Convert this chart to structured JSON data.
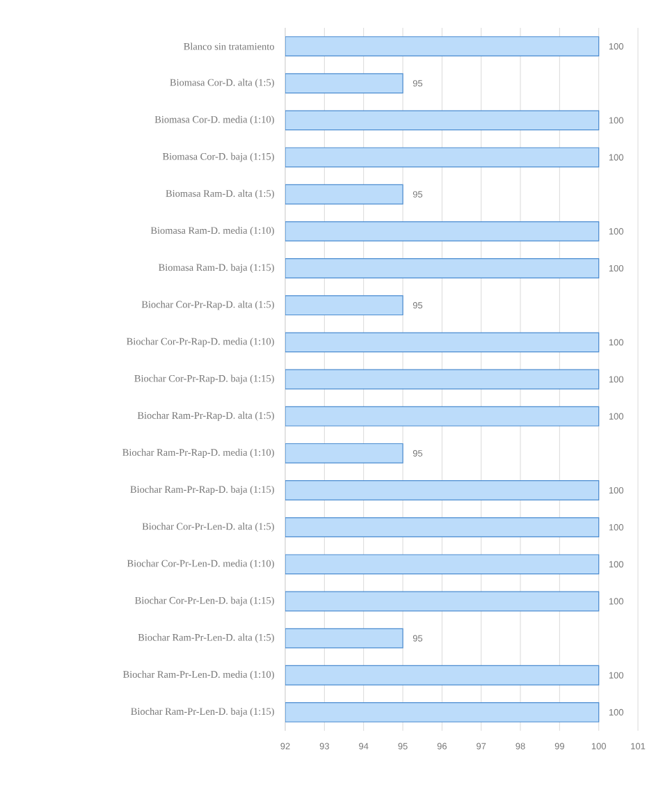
{
  "chart_data": {
    "type": "bar",
    "orientation": "horizontal",
    "categories": [
      "Blanco sin tratamiento",
      "Biomasa Cor-D. alta (1:5)",
      "Biomasa Cor-D. media (1:10)",
      "Biomasa Cor-D. baja (1:15)",
      "Biomasa Ram-D. alta (1:5)",
      "Biomasa Ram-D. media (1:10)",
      "Biomasa Ram-D. baja (1:15)",
      "Biochar Cor-Pr-Rap-D. alta (1:5)",
      "Biochar Cor-Pr-Rap-D. media (1:10)",
      "Biochar Cor-Pr-Rap-D. baja (1:15)",
      "Biochar Ram-Pr-Rap-D. alta (1:5)",
      "Biochar Ram-Pr-Rap-D. media (1:10)",
      "Biochar Ram-Pr-Rap-D. baja (1:15)",
      "Biochar Cor-Pr-Len-D. alta (1:5)",
      "Biochar Cor-Pr-Len-D. media (1:10)",
      "Biochar Cor-Pr-Len-D. baja (1:15)",
      "Biochar Ram-Pr-Len-D. alta (1:5)",
      "Biochar Ram-Pr-Len-D. media (1:10)",
      "Biochar Ram-Pr-Len-D. baja (1:15)"
    ],
    "values": [
      100,
      95,
      100,
      100,
      95,
      100,
      100,
      95,
      100,
      100,
      100,
      95,
      100,
      100,
      100,
      100,
      95,
      100,
      100
    ],
    "color": "#bcdcfa",
    "xlim": [
      92,
      101
    ],
    "xticks": [
      92,
      93,
      94,
      95,
      96,
      97,
      98,
      99,
      100,
      101
    ],
    "grid": "x",
    "data_labels": true
  }
}
